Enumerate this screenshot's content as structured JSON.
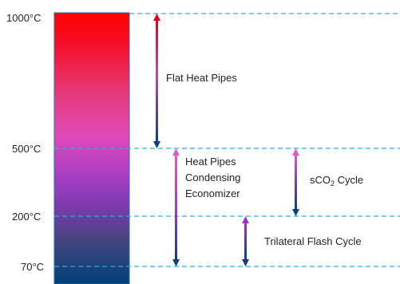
{
  "temperature_levels": [
    {
      "label": "1000°C",
      "value": 1000
    },
    {
      "label": "500°C",
      "value": 500
    },
    {
      "label": "200°C",
      "value": 200
    },
    {
      "label": "70°C",
      "value": 70
    }
  ],
  "ranges": [
    {
      "name": "Flat Heat Pipes",
      "from": 1000,
      "to": 500
    },
    {
      "name_lines": [
        "Heat Pipes",
        "Condensing",
        "Economizer"
      ],
      "from": 500,
      "to": 70
    },
    {
      "name_main": "sCO",
      "name_sub": "2",
      "name_tail": " Cycle",
      "from": 500,
      "to": 200
    },
    {
      "name": "Trilateral Flash Cycle",
      "from": 200,
      "to": 70
    }
  ],
  "colors": {
    "gradient_top": "#ff0000",
    "gradient_mid": "#e040b8",
    "gradient_lower": "#8a30c0",
    "gradient_bottom": "#00407a",
    "dashed_line": "#33a9e0",
    "bar_edge": "#1f6fb5"
  }
}
